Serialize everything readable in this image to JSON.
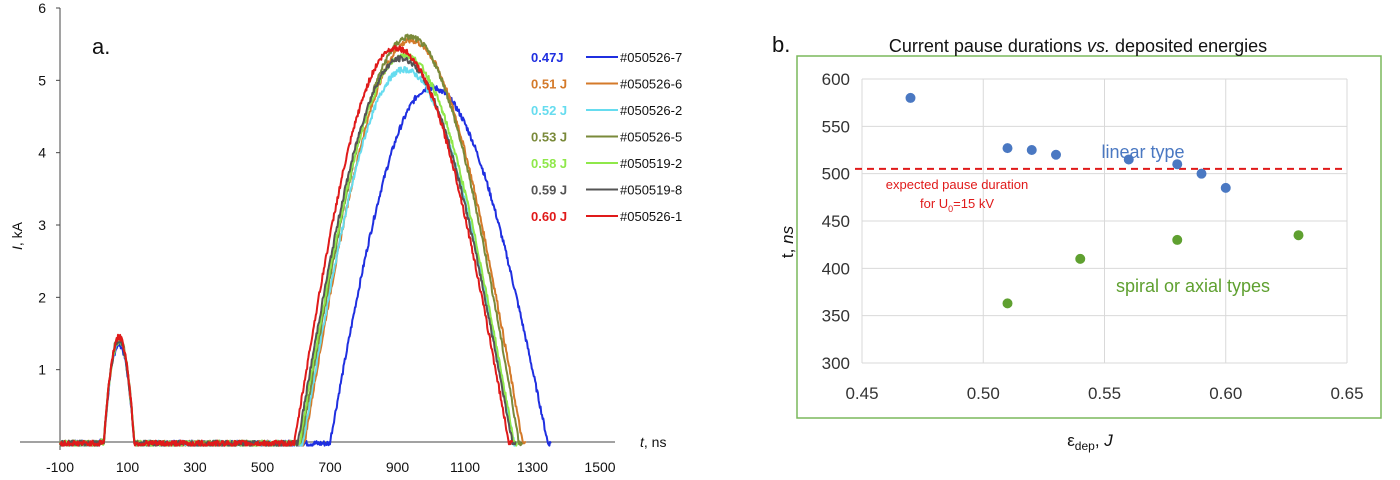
{
  "chart_data": [
    {
      "panel_label": "a.",
      "type": "line",
      "xlabel_italic": "t",
      "xlabel_rest": ", ns",
      "ylabel_italic": "I",
      "ylabel_rest": ", kA",
      "xlim": [
        -100,
        1500
      ],
      "ylim": [
        0,
        6
      ],
      "x_ticks": [
        "-100",
        "100",
        "300",
        "500",
        "700",
        "900",
        "1100",
        "1300",
        "1500"
      ],
      "y_ticks": [
        "1",
        "2",
        "3",
        "4",
        "5",
        "6"
      ],
      "legend_placement": "top-right",
      "series": [
        {
          "name": "#050526-7",
          "energy": "0.47J",
          "color": "#1f2fe0",
          "pulse_peak": 1.35,
          "rise_start": 700,
          "peak_t": 1000,
          "peak_i": 4.9,
          "end_t": 1345
        },
        {
          "name": "#050526-6",
          "energy": "0.51 J",
          "color": "#d47a2a",
          "pulse_peak": 1.4,
          "rise_start": 625,
          "peak_t": 940,
          "peak_i": 5.55,
          "end_t": 1270
        },
        {
          "name": "#050526-2",
          "energy": "0.52 J",
          "color": "#66dcef",
          "pulse_peak": 1.4,
          "rise_start": 620,
          "peak_t": 920,
          "peak_i": 5.15,
          "end_t": 1245
        },
        {
          "name": "#050526-5",
          "energy": "0.53 J",
          "color": "#7a8a3a",
          "pulse_peak": 1.45,
          "rise_start": 615,
          "peak_t": 935,
          "peak_i": 5.6,
          "end_t": 1260
        },
        {
          "name": "#050519-2",
          "energy": "0.58 J",
          "color": "#8fe84a",
          "pulse_peak": 1.4,
          "rise_start": 610,
          "peak_t": 920,
          "peak_i": 5.35,
          "end_t": 1245
        },
        {
          "name": "#050519-8",
          "energy": "0.59 J",
          "color": "#555555",
          "pulse_peak": 1.4,
          "rise_start": 605,
          "peak_t": 910,
          "peak_i": 5.3,
          "end_t": 1240
        },
        {
          "name": "#050526-1",
          "energy": "0.60 J",
          "color": "#e01a1a",
          "pulse_peak": 1.45,
          "rise_start": 595,
          "peak_t": 895,
          "peak_i": 5.45,
          "end_t": 1230
        }
      ]
    },
    {
      "panel_label": "b.",
      "type": "scatter",
      "title_plain": "Current pause durations ",
      "title_italic": "vs.",
      "title_rest": " deposited energies",
      "xlabel": "εdep, J",
      "ylabel": "t, ns",
      "xlim": [
        0.45,
        0.65
      ],
      "ylim": [
        300,
        600
      ],
      "x_ticks": [
        "0.45",
        "0.50",
        "0.55",
        "0.60",
        "0.65"
      ],
      "y_ticks": [
        "300",
        "350",
        "400",
        "450",
        "500",
        "550",
        "600"
      ],
      "grid": true,
      "series": [
        {
          "label_text": "linear type",
          "color": "#4a78c2",
          "x": [
            0.47,
            0.51,
            0.52,
            0.53,
            0.56,
            0.58,
            0.59,
            0.6
          ],
          "y": [
            580,
            527,
            525,
            520,
            515,
            510,
            500,
            485
          ]
        },
        {
          "label_text": "spiral or axial types",
          "color": "#5fa030",
          "x": [
            0.51,
            0.54,
            0.58,
            0.63
          ],
          "y": [
            363,
            410,
            430,
            435
          ]
        }
      ],
      "reference_line": {
        "y": 505,
        "color": "#e01a1a",
        "label_line1": "expected pause duration",
        "label_line2_pre": "for U",
        "label_sub": "0",
        "label_line2_post": "=15 kV"
      }
    }
  ]
}
